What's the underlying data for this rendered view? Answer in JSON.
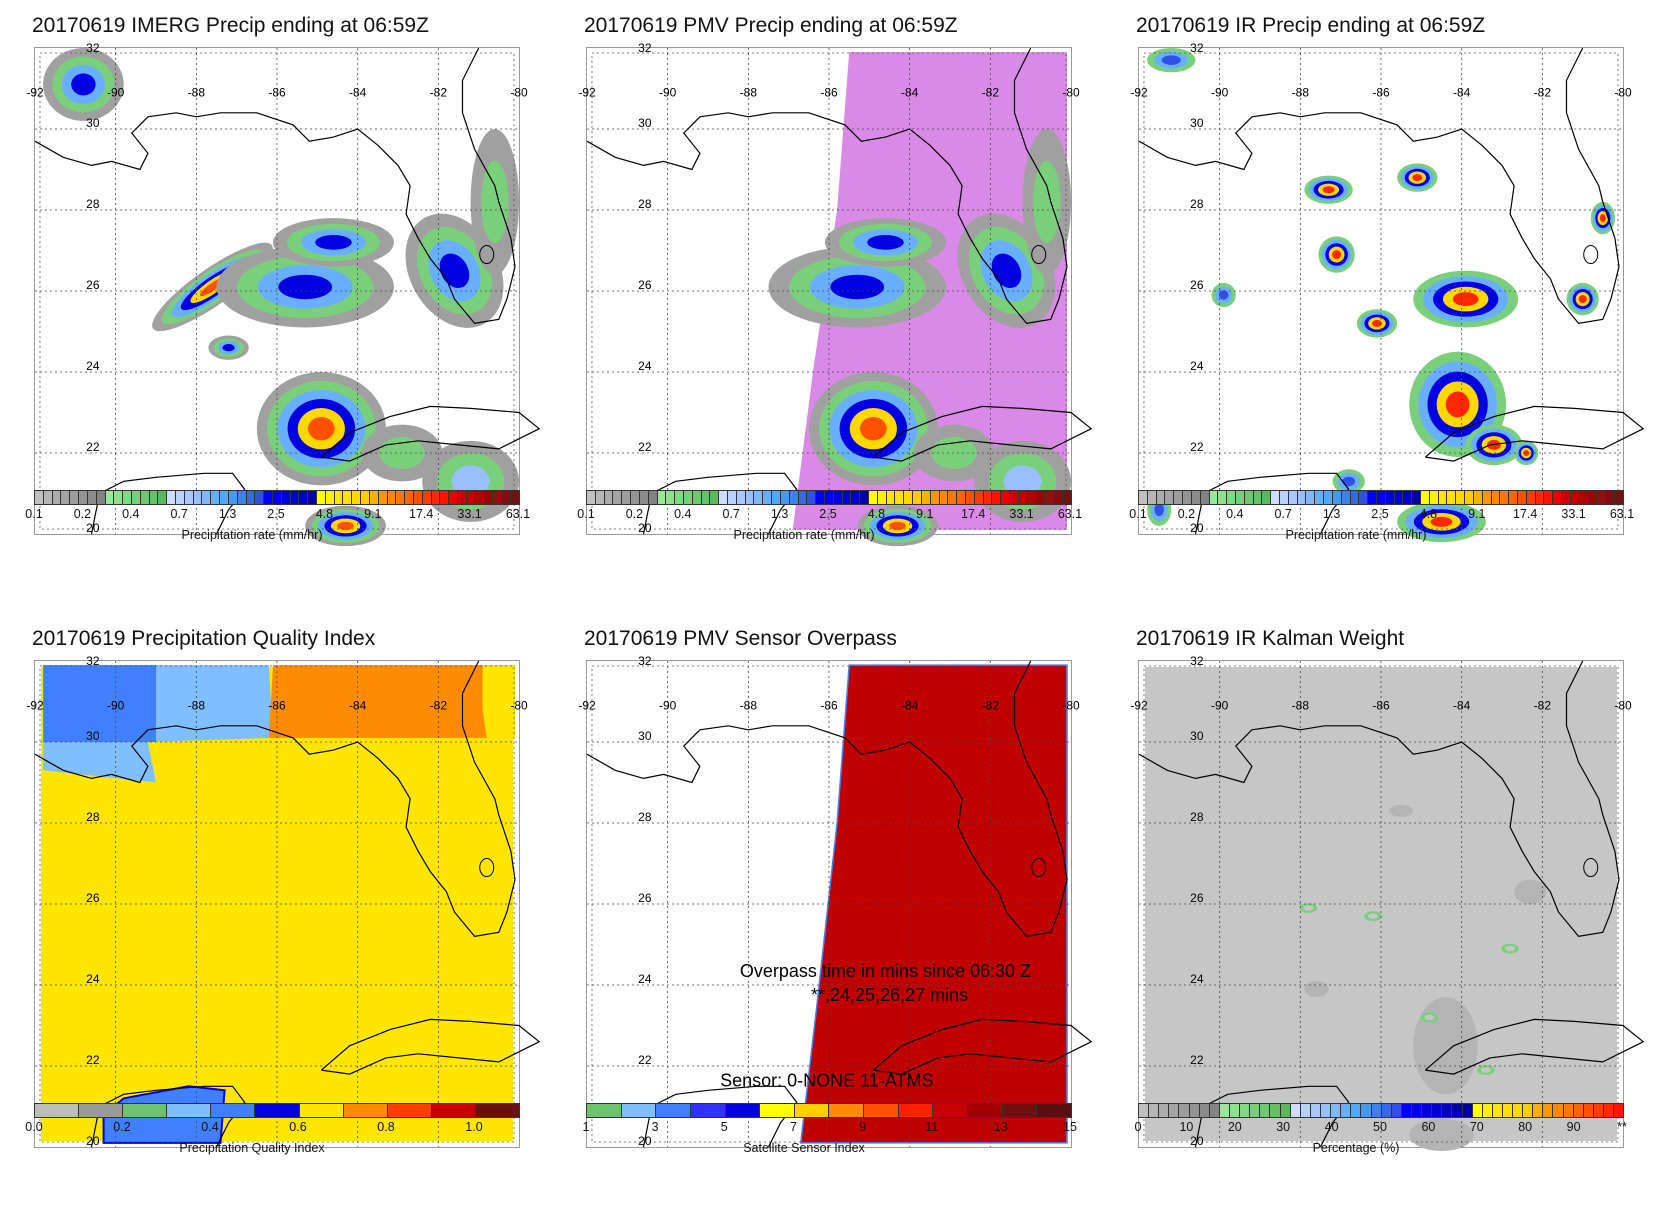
{
  "panels": [
    {
      "id": "imerg",
      "title": "20170619 IMERG Precip ending at 06:59Z",
      "type": "imerg",
      "colorbar": "precip",
      "cb_label": "Precipitation rate (mm/hr)"
    },
    {
      "id": "pmv",
      "title": "20170619 PMV Precip ending at 06:59Z",
      "type": "pmv",
      "colorbar": "precip",
      "cb_label": "Precipitation rate (mm/hr)"
    },
    {
      "id": "ir",
      "title": "20170619 IR Precip ending at 06:59Z",
      "type": "ir",
      "colorbar": "precip",
      "cb_label": "Precipitation rate (mm/hr)"
    },
    {
      "id": "pqi",
      "title": "20170619 Precipitation Quality Index",
      "type": "pqi",
      "colorbar": "pqi",
      "cb_label": "Precipitation Quality Index"
    },
    {
      "id": "sensor",
      "title": "20170619 PMV Sensor Overpass",
      "type": "sensor",
      "colorbar": "sensor",
      "cb_label": "Satellite Sensor Index",
      "annotations": [
        "Overpass time in mins since 06:30 Z",
        "**,24,25,26,27 mins",
        "Sensor:   0-NONE 11-ATMS"
      ]
    },
    {
      "id": "kalman",
      "title": "20170619 IR Kalman Weight",
      "type": "kalman",
      "colorbar": "kalman",
      "cb_label": "Percentage (%)"
    }
  ],
  "map_axes": {
    "lon_labels": [
      "-92",
      "-90",
      "-88",
      "-86",
      "-84",
      "-82",
      "-80"
    ],
    "lat_labels": [
      "32",
      "30",
      "28",
      "26",
      "24",
      "22",
      "20"
    ]
  },
  "colorbars": {
    "precip": {
      "ticks": [
        "0.1",
        "0.2",
        "0.4",
        "0.7",
        "1.3",
        "2.5",
        "4.8",
        "9.1",
        "17.4",
        "33.1",
        "63.1"
      ],
      "colors": [
        "#c0c0c0",
        "#b6b6b6",
        "#acacac",
        "#a4a4a4",
        "#9c9c9c",
        "#949494",
        "#8c8c8c",
        "#848484",
        "#98e898",
        "#8ee08e",
        "#84d884",
        "#7ad07a",
        "#70c870",
        "#66c066",
        "#5cb85c",
        "#d0dcff",
        "#b8d0ff",
        "#a8c8ff",
        "#98c0ff",
        "#80b8ff",
        "#68b0ff",
        "#50a8ff",
        "#4898f0",
        "#4080e8",
        "#3868e8",
        "#3050e8",
        "#0000ff",
        "#0000f0",
        "#0000e0",
        "#0000d0",
        "#0000c0",
        "#0000b0",
        "#ffff00",
        "#fff000",
        "#ffe800",
        "#ffe000",
        "#ffd800",
        "#ffcc00",
        "#ffb000",
        "#ff9800",
        "#ff8800",
        "#ff7800",
        "#ff6400",
        "#ff5000",
        "#ff3c00",
        "#ff2800",
        "#ff1400",
        "#e80000",
        "#d00000",
        "#c00000",
        "#b00000",
        "#a00000",
        "#901010",
        "#801010",
        "#701010"
      ]
    },
    "pqi": {
      "ticks": [
        "0.0",
        "0.2",
        "0.4",
        "0.6",
        "0.8",
        "1.0"
      ],
      "colors": [
        "#bdbdbd",
        "#9a9a9a",
        "#6cc36c",
        "#80bfff",
        "#4080ff",
        "#0000e0",
        "#ffe600",
        "#ff8c00",
        "#ff3c00",
        "#c80000",
        "#6b0f0f"
      ]
    },
    "sensor": {
      "ticks": [
        "1",
        "3",
        "5",
        "7",
        "9",
        "11",
        "13",
        "15"
      ],
      "colors": [
        "#6cc36c",
        "#80bfff",
        "#4080ff",
        "#3030ff",
        "#0000e0",
        "#ffff00",
        "#ffd000",
        "#ff8c00",
        "#ff5000",
        "#ff2000",
        "#c80000",
        "#a00000",
        "#700f0f",
        "#5a0f0f"
      ]
    },
    "kalman": {
      "ticks": [
        "0",
        "10",
        "20",
        "30",
        "40",
        "50",
        "60",
        "70",
        "80",
        "90",
        "**"
      ],
      "colors": [
        "#c0c0c0",
        "#b6b6b6",
        "#acacac",
        "#a4a4a4",
        "#9c9c9c",
        "#949494",
        "#8c8c8c",
        "#848484",
        "#98e898",
        "#8ee08e",
        "#84d884",
        "#7ad07a",
        "#70c870",
        "#66c066",
        "#5cb85c",
        "#d0dcff",
        "#b8d0ff",
        "#a8c8ff",
        "#98c0ff",
        "#80b8ff",
        "#68b0ff",
        "#50a8ff",
        "#4898f0",
        "#4080e8",
        "#3868e8",
        "#3050e8",
        "#0000ff",
        "#0000f0",
        "#0000e0",
        "#0000d0",
        "#0000c0",
        "#0000b0",
        "#0000a0",
        "#ffff00",
        "#fff000",
        "#ffe800",
        "#ffe000",
        "#ffd800",
        "#ffcc00",
        "#ffb000",
        "#ff9800",
        "#ff8800",
        "#ff7800",
        "#ff6400",
        "#ff5000",
        "#ff3c00",
        "#ff2800",
        "#ff1400"
      ]
    }
  }
}
